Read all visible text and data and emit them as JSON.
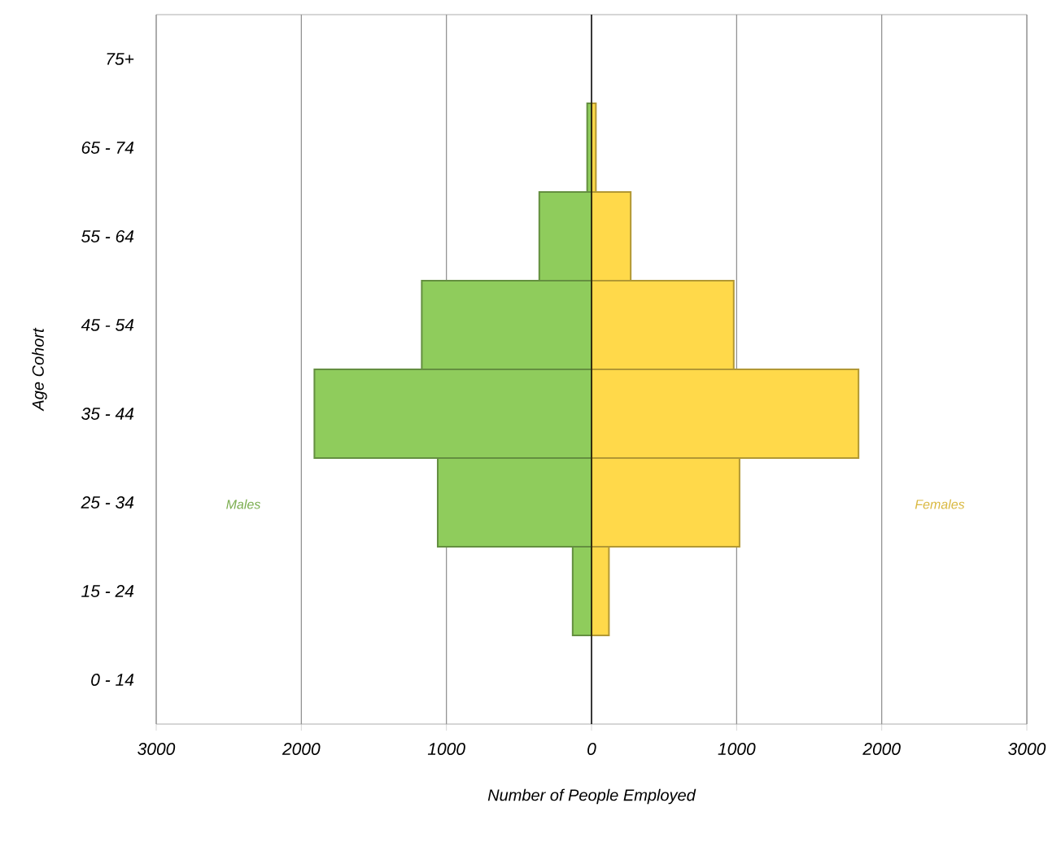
{
  "chart_data": {
    "type": "bar",
    "orientation": "horizontal",
    "xlabel": "Number of People Employed",
    "ylabel": "Age Cohort",
    "categories": [
      "75+",
      "65 - 74",
      "55 - 64",
      "45 - 54",
      "35 - 44",
      "25 - 34",
      "15 - 24",
      "0 - 14"
    ],
    "series": [
      {
        "name": "Males",
        "color": "#8fcc5c",
        "values": [
          null,
          -30,
          -360,
          -1170,
          -1910,
          -1060,
          -130,
          null
        ]
      },
      {
        "name": "Females",
        "color": "#ffd94a",
        "values": [
          null,
          30,
          270,
          980,
          1840,
          1020,
          120,
          null
        ]
      }
    ],
    "xlim": [
      -3000,
      3000
    ],
    "xticks": [
      {
        "value": -3000,
        "label": "3000"
      },
      {
        "value": -2000,
        "label": "2000"
      },
      {
        "value": -1000,
        "label": "1000"
      },
      0,
      1000,
      2000,
      3000
    ],
    "grid": "x",
    "legend": false,
    "stacked": true
  }
}
